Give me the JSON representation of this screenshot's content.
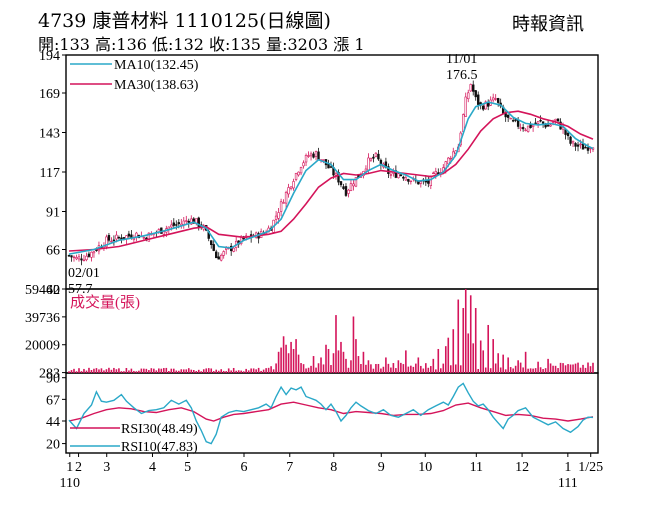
{
  "header": {
    "stock_code": "4739",
    "stock_name": "康普材料",
    "date_label": "1110125(日線圖)",
    "stats": "開:133 高:136 低:132 收:135 量:3203 漲 1",
    "source": "時報資訊"
  },
  "colors": {
    "ma10": "#2aa8c8",
    "ma30": "#d4145a",
    "volume": "#d4145a",
    "up_candle": "#d4145a",
    "down_candle": "#111111",
    "rsi30": "#d4145a",
    "rsi10": "#2aa8c8"
  },
  "chart_data": {
    "type": "candlestick-with-volume-and-rsi",
    "price_panel": {
      "y_ticks": [
        40,
        66,
        91,
        117,
        143,
        169,
        194
      ],
      "ylim": [
        40,
        194
      ],
      "legend": [
        {
          "label": "MA10(132.45)",
          "color": "#2aa8c8"
        },
        {
          "label": "MA30(138.63)",
          "color": "#d4145a"
        }
      ],
      "annotations": [
        {
          "date": "02/01",
          "value": "57.7"
        },
        {
          "date": "11/01",
          "value": "176.5"
        }
      ],
      "close_path": [
        [
          0,
          62
        ],
        [
          3,
          60
        ],
        [
          6,
          61
        ],
        [
          9,
          64
        ],
        [
          12,
          68
        ],
        [
          15,
          72
        ],
        [
          18,
          73
        ],
        [
          21,
          74
        ],
        [
          24,
          75
        ],
        [
          27,
          76
        ],
        [
          30,
          74
        ],
        [
          33,
          76
        ],
        [
          36,
          78
        ],
        [
          39,
          80
        ],
        [
          42,
          82
        ],
        [
          45,
          83
        ],
        [
          48,
          86
        ],
        [
          51,
          84
        ],
        [
          54,
          80
        ],
        [
          57,
          70
        ],
        [
          59,
          61
        ],
        [
          61,
          62
        ],
        [
          63,
          65
        ],
        [
          66,
          68
        ],
        [
          69,
          72
        ],
        [
          72,
          74
        ],
        [
          75,
          75
        ],
        [
          78,
          77
        ],
        [
          81,
          81
        ],
        [
          84,
          92
        ],
        [
          87,
          103
        ],
        [
          90,
          113
        ],
        [
          93,
          122
        ],
        [
          96,
          128
        ],
        [
          99,
          129
        ],
        [
          102,
          124
        ],
        [
          105,
          118
        ],
        [
          108,
          112
        ],
        [
          111,
          104
        ],
        [
          114,
          111
        ],
        [
          117,
          116
        ],
        [
          120,
          124
        ],
        [
          123,
          127
        ],
        [
          126,
          120
        ],
        [
          129,
          115
        ],
        [
          132,
          116
        ],
        [
          135,
          114
        ],
        [
          138,
          111
        ],
        [
          141,
          110
        ],
        [
          144,
          110
        ],
        [
          147,
          116
        ],
        [
          150,
          120
        ],
        [
          153,
          128
        ],
        [
          156,
          134
        ],
        [
          159,
          164
        ],
        [
          161,
          175
        ],
        [
          163,
          165
        ],
        [
          165,
          160
        ],
        [
          168,
          162
        ],
        [
          171,
          165
        ],
        [
          174,
          155
        ],
        [
          177,
          150
        ],
        [
          180,
          148
        ],
        [
          183,
          146
        ],
        [
          186,
          148
        ],
        [
          189,
          150
        ],
        [
          192,
          147
        ],
        [
          195,
          151
        ],
        [
          198,
          145
        ],
        [
          201,
          136
        ],
        [
          204,
          134
        ],
        [
          207,
          133
        ],
        [
          210,
          135
        ]
      ],
      "ma10": [
        [
          0,
          63
        ],
        [
          10,
          66
        ],
        [
          20,
          72
        ],
        [
          30,
          75
        ],
        [
          40,
          79
        ],
        [
          50,
          84
        ],
        [
          55,
          80
        ],
        [
          60,
          68
        ],
        [
          65,
          67
        ],
        [
          70,
          72
        ],
        [
          80,
          78
        ],
        [
          85,
          86
        ],
        [
          90,
          103
        ],
        [
          95,
          118
        ],
        [
          100,
          125
        ],
        [
          105,
          122
        ],
        [
          110,
          112
        ],
        [
          115,
          112
        ],
        [
          120,
          118
        ],
        [
          125,
          122
        ],
        [
          130,
          118
        ],
        [
          135,
          115
        ],
        [
          140,
          111
        ],
        [
          145,
          112
        ],
        [
          150,
          117
        ],
        [
          155,
          128
        ],
        [
          160,
          152
        ],
        [
          163,
          160
        ],
        [
          168,
          163
        ],
        [
          173,
          161
        ],
        [
          178,
          153
        ],
        [
          183,
          149
        ],
        [
          188,
          148
        ],
        [
          193,
          149
        ],
        [
          198,
          147
        ],
        [
          203,
          139
        ],
        [
          208,
          134
        ],
        [
          210,
          132.45
        ]
      ],
      "ma30": [
        [
          0,
          65
        ],
        [
          10,
          66
        ],
        [
          20,
          68
        ],
        [
          30,
          72
        ],
        [
          40,
          76
        ],
        [
          50,
          80
        ],
        [
          55,
          81
        ],
        [
          60,
          76
        ],
        [
          70,
          74
        ],
        [
          80,
          76
        ],
        [
          85,
          78
        ],
        [
          90,
          86
        ],
        [
          95,
          96
        ],
        [
          100,
          107
        ],
        [
          105,
          113
        ],
        [
          110,
          116
        ],
        [
          115,
          115
        ],
        [
          120,
          116
        ],
        [
          125,
          118
        ],
        [
          130,
          117
        ],
        [
          135,
          116
        ],
        [
          140,
          115
        ],
        [
          145,
          114
        ],
        [
          150,
          116
        ],
        [
          155,
          122
        ],
        [
          160,
          132
        ],
        [
          165,
          144
        ],
        [
          170,
          152
        ],
        [
          175,
          156
        ],
        [
          180,
          157
        ],
        [
          185,
          155
        ],
        [
          190,
          152
        ],
        [
          195,
          150
        ],
        [
          200,
          147
        ],
        [
          205,
          142
        ],
        [
          210,
          138.63
        ]
      ]
    },
    "volume_panel": {
      "title": "成交量(張)",
      "y_ticks": [
        283,
        20009,
        39736,
        59462
      ],
      "ylim": [
        0,
        59462
      ],
      "spikes": [
        [
          84,
          15000
        ],
        [
          85,
          18000
        ],
        [
          86,
          26000
        ],
        [
          87,
          20000
        ],
        [
          88,
          14000
        ],
        [
          89,
          22000
        ],
        [
          90,
          17000
        ],
        [
          91,
          24000
        ],
        [
          92,
          13000
        ],
        [
          98,
          12000
        ],
        [
          101,
          11000
        ],
        [
          103,
          20000
        ],
        [
          104,
          17000
        ],
        [
          106,
          14000
        ],
        [
          107,
          41000
        ],
        [
          108,
          16000
        ],
        [
          109,
          22000
        ],
        [
          110,
          15000
        ],
        [
          111,
          10000
        ],
        [
          113,
          9000
        ],
        [
          114,
          40000
        ],
        [
          115,
          24000
        ],
        [
          116,
          12000
        ],
        [
          118,
          15000
        ],
        [
          120,
          9000
        ],
        [
          127,
          11000
        ],
        [
          132,
          9000
        ],
        [
          135,
          16000
        ],
        [
          140,
          11000
        ],
        [
          146,
          10000
        ],
        [
          148,
          17000
        ],
        [
          151,
          19000
        ],
        [
          152,
          25000
        ],
        [
          154,
          31000
        ],
        [
          156,
          52000
        ],
        [
          158,
          46000
        ],
        [
          159,
          59462
        ],
        [
          160,
          28000
        ],
        [
          161,
          55000
        ],
        [
          162,
          21000
        ],
        [
          163,
          46000
        ],
        [
          165,
          23000
        ],
        [
          166,
          16000
        ],
        [
          168,
          34000
        ],
        [
          170,
          24000
        ],
        [
          172,
          14000
        ],
        [
          174,
          13000
        ],
        [
          176,
          11000
        ],
        [
          180,
          9000
        ],
        [
          183,
          15000
        ],
        [
          188,
          8000
        ],
        [
          192,
          10000
        ],
        [
          198,
          7000
        ],
        [
          201,
          6000
        ]
      ]
    },
    "rsi_panel": {
      "y_ticks": [
        20,
        44,
        67,
        90
      ],
      "ylim": [
        10,
        95
      ],
      "legend": [
        {
          "label": "RSI30(48.49)",
          "color": "#d4145a"
        },
        {
          "label": "RSI10(47.83)",
          "color": "#2aa8c8"
        }
      ],
      "rsi10": [
        [
          0,
          45
        ],
        [
          3,
          36
        ],
        [
          6,
          52
        ],
        [
          9,
          61
        ],
        [
          11,
          75
        ],
        [
          13,
          65
        ],
        [
          15,
          64
        ],
        [
          18,
          66
        ],
        [
          21,
          72
        ],
        [
          23,
          65
        ],
        [
          26,
          58
        ],
        [
          29,
          52
        ],
        [
          32,
          55
        ],
        [
          35,
          56
        ],
        [
          38,
          58
        ],
        [
          41,
          66
        ],
        [
          44,
          62
        ],
        [
          47,
          66
        ],
        [
          49,
          58
        ],
        [
          51,
          44
        ],
        [
          53,
          34
        ],
        [
          55,
          22
        ],
        [
          57,
          20
        ],
        [
          59,
          30
        ],
        [
          61,
          48
        ],
        [
          64,
          53
        ],
        [
          67,
          55
        ],
        [
          70,
          54
        ],
        [
          73,
          56
        ],
        [
          76,
          58
        ],
        [
          79,
          62
        ],
        [
          81,
          58
        ],
        [
          83,
          70
        ],
        [
          85,
          80
        ],
        [
          87,
          72
        ],
        [
          89,
          79
        ],
        [
          91,
          77
        ],
        [
          93,
          80
        ],
        [
          95,
          70
        ],
        [
          97,
          68
        ],
        [
          99,
          66
        ],
        [
          101,
          62
        ],
        [
          103,
          56
        ],
        [
          105,
          62
        ],
        [
          107,
          54
        ],
        [
          109,
          44
        ],
        [
          111,
          50
        ],
        [
          113,
          58
        ],
        [
          115,
          64
        ],
        [
          117,
          60
        ],
        [
          120,
          55
        ],
        [
          123,
          52
        ],
        [
          126,
          56
        ],
        [
          129,
          50
        ],
        [
          132,
          48
        ],
        [
          135,
          52
        ],
        [
          138,
          56
        ],
        [
          141,
          50
        ],
        [
          144,
          56
        ],
        [
          147,
          60
        ],
        [
          150,
          64
        ],
        [
          152,
          61
        ],
        [
          154,
          70
        ],
        [
          156,
          80
        ],
        [
          158,
          84
        ],
        [
          160,
          74
        ],
        [
          162,
          65
        ],
        [
          164,
          60
        ],
        [
          166,
          62
        ],
        [
          168,
          56
        ],
        [
          170,
          48
        ],
        [
          172,
          42
        ],
        [
          174,
          36
        ],
        [
          176,
          46
        ],
        [
          178,
          50
        ],
        [
          180,
          55
        ],
        [
          183,
          58
        ],
        [
          186,
          48
        ],
        [
          189,
          44
        ],
        [
          192,
          40
        ],
        [
          195,
          43
        ],
        [
          198,
          36
        ],
        [
          201,
          32
        ],
        [
          204,
          38
        ],
        [
          206,
          45
        ],
        [
          208,
          48
        ],
        [
          210,
          47.83
        ]
      ],
      "rsi30": [
        [
          0,
          44
        ],
        [
          5,
          47
        ],
        [
          10,
          52
        ],
        [
          15,
          56
        ],
        [
          20,
          58
        ],
        [
          25,
          57
        ],
        [
          30,
          54
        ],
        [
          35,
          53
        ],
        [
          40,
          56
        ],
        [
          45,
          58
        ],
        [
          50,
          54
        ],
        [
          55,
          46
        ],
        [
          58,
          44
        ],
        [
          62,
          48
        ],
        [
          66,
          51
        ],
        [
          70,
          52
        ],
        [
          75,
          54
        ],
        [
          80,
          56
        ],
        [
          85,
          62
        ],
        [
          90,
          64
        ],
        [
          95,
          61
        ],
        [
          100,
          58
        ],
        [
          105,
          56
        ],
        [
          110,
          52
        ],
        [
          115,
          54
        ],
        [
          120,
          53
        ],
        [
          125,
          52
        ],
        [
          130,
          50
        ],
        [
          135,
          51
        ],
        [
          140,
          51
        ],
        [
          145,
          52
        ],
        [
          150,
          55
        ],
        [
          155,
          61
        ],
        [
          160,
          63
        ],
        [
          165,
          58
        ],
        [
          170,
          54
        ],
        [
          175,
          50
        ],
        [
          180,
          51
        ],
        [
          185,
          50
        ],
        [
          190,
          47
        ],
        [
          195,
          46
        ],
        [
          200,
          44
        ],
        [
          205,
          46
        ],
        [
          210,
          48.49
        ]
      ]
    },
    "x_axis": {
      "ticks": [
        {
          "label": "1",
          "t": 1
        },
        {
          "label": "2",
          "t": 6
        },
        {
          "label": "3",
          "t": 22
        },
        {
          "label": "4",
          "t": 48
        },
        {
          "label": "5",
          "t": 68
        },
        {
          "label": "6",
          "t": 100
        },
        {
          "label": "7",
          "t": 126
        },
        {
          "label": "8",
          "t": 151
        },
        {
          "label": "9",
          "t": 178
        },
        {
          "label": "10",
          "t": 203
        },
        {
          "label": "11",
          "t": 232
        },
        {
          "label": "12",
          "t": 258
        },
        {
          "label": "1",
          "t": 284
        },
        {
          "label": "1/25",
          "t": 297
        }
      ],
      "year_labels": [
        {
          "label": "110",
          "t": 1
        },
        {
          "label": "111",
          "t": 284
        }
      ]
    }
  }
}
